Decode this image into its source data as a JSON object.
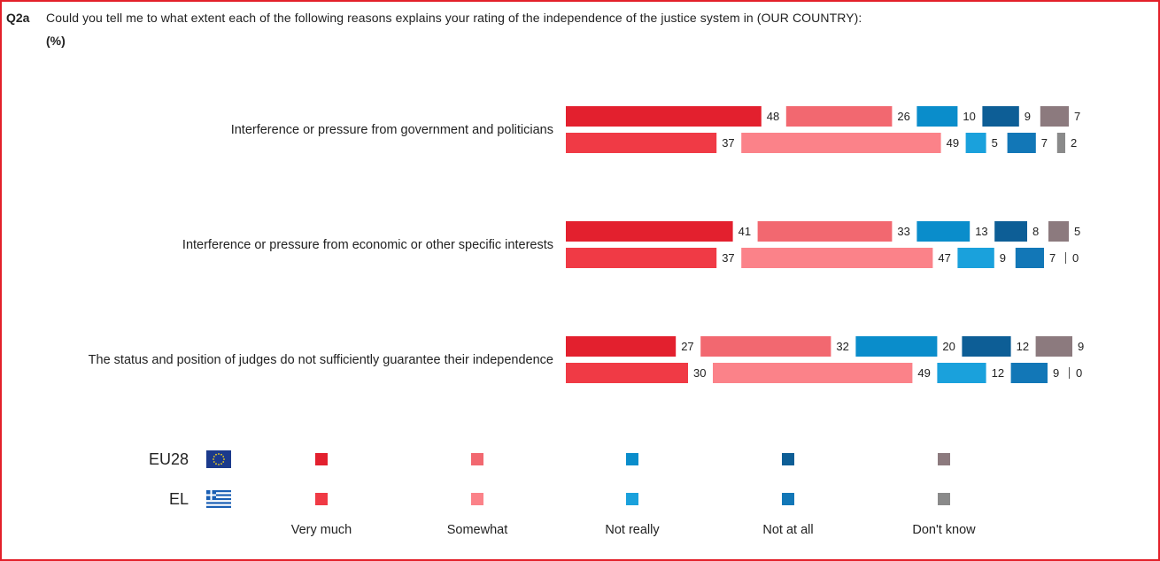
{
  "question": {
    "code": "Q2a",
    "text": "Could you tell me to what extent each of the following reasons explains your rating of the independence of the justice system in (OUR COUNTRY):",
    "unit": "(%)"
  },
  "chart_data": {
    "type": "bar",
    "stacking": "split-segments",
    "categories": [
      "Interference or pressure from government and politicians",
      "Interference or pressure from economic or other specific interests",
      "The status and position of judges do not sufficiently guarantee their independence"
    ],
    "groups": [
      "EU28",
      "EL"
    ],
    "answers": [
      "Very much",
      "Somewhat",
      "Not really",
      "Not at all",
      "Don't know"
    ],
    "values": {
      "EU28": [
        [
          48,
          26,
          10,
          9,
          7
        ],
        [
          41,
          33,
          13,
          8,
          5
        ],
        [
          27,
          32,
          20,
          12,
          9
        ]
      ],
      "EL": [
        [
          37,
          49,
          5,
          7,
          2
        ],
        [
          37,
          47,
          9,
          7,
          0
        ],
        [
          30,
          49,
          12,
          9,
          0
        ]
      ]
    },
    "colors": {
      "EU28": [
        "#e3202e",
        "#f26870",
        "#0a8dcb",
        "#0d5e96",
        "#8c7a7e"
      ],
      "EL": [
        "#f03a45",
        "#fb8289",
        "#1aa1dc",
        "#1277b7",
        "#8a8a8a"
      ]
    },
    "legend": {
      "groups": [
        "EU28",
        "EL"
      ],
      "group_icons": [
        "eu-flag-icon",
        "greek-flag-icon"
      ],
      "placement": "bottom"
    }
  }
}
